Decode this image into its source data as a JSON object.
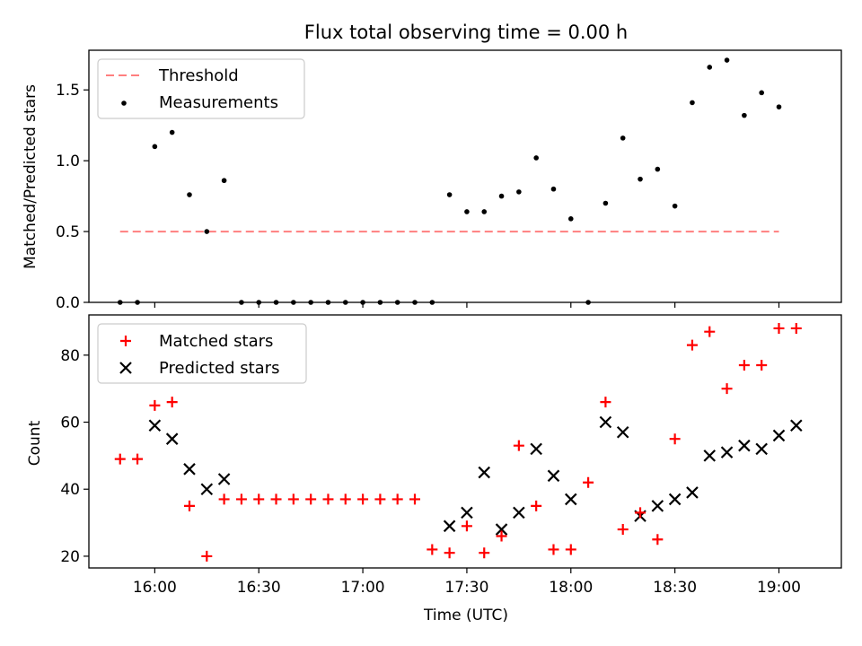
{
  "chart_data": [
    {
      "type": "scatter",
      "title": "Flux total observing time = 0.00 h",
      "ylabel": "Matched/Predicted stars",
      "xlabel": "",
      "xlim": [
        "15:41",
        "19:18"
      ],
      "ylim": [
        0,
        1.78
      ],
      "yticks": [
        "0.0",
        "0.5",
        "1.0",
        "1.5"
      ],
      "legend": {
        "placement": "top-left",
        "entries": [
          "Threshold",
          "Measurements"
        ]
      },
      "threshold": {
        "name": "Threshold",
        "value": 0.5,
        "x": [
          "15:50",
          "19:00"
        ],
        "color": "#ff7f7f"
      },
      "series": [
        {
          "name": "Measurements",
          "color": "#000000",
          "x": [
            "15:50",
            "15:55",
            "16:00",
            "16:05",
            "16:10",
            "16:15",
            "16:20",
            "16:25",
            "16:30",
            "16:35",
            "16:40",
            "16:45",
            "16:50",
            "16:55",
            "17:00",
            "17:05",
            "17:10",
            "17:15",
            "17:20",
            "17:25",
            "17:30",
            "17:35",
            "17:40",
            "17:45",
            "17:50",
            "17:55",
            "18:00",
            "18:05",
            "18:10",
            "18:15",
            "18:20",
            "18:25",
            "18:30",
            "18:35",
            "18:40",
            "18:45",
            "18:50",
            "18:55",
            "19:00"
          ],
          "values": [
            0.0,
            0.0,
            1.1,
            1.2,
            0.76,
            0.5,
            0.86,
            0.0,
            0.0,
            0.0,
            0.0,
            0.0,
            0.0,
            0.0,
            0.0,
            0.0,
            0.0,
            0.0,
            0.0,
            0.76,
            0.64,
            0.64,
            0.75,
            0.78,
            1.02,
            0.8,
            0.59,
            0.0,
            0.7,
            1.16,
            0.87,
            0.94,
            0.68,
            1.41,
            1.66,
            1.71,
            1.32,
            1.48,
            1.38
          ]
        }
      ]
    },
    {
      "type": "scatter",
      "title": "",
      "xlabel": "Time (UTC)",
      "ylabel": "Count",
      "xlim": [
        "15:41",
        "19:18"
      ],
      "ylim": [
        16.5,
        92
      ],
      "xticks": [
        "16:00",
        "16:30",
        "17:00",
        "17:30",
        "18:00",
        "18:30",
        "19:00"
      ],
      "yticks": [
        "20",
        "40",
        "60",
        "80"
      ],
      "legend": {
        "placement": "top-left",
        "entries": [
          "Matched stars",
          "Predicted stars"
        ]
      },
      "series": [
        {
          "name": "Matched stars",
          "marker": "plus",
          "color": "#ff0000",
          "x": [
            "15:50",
            "15:55",
            "16:00",
            "16:05",
            "16:10",
            "16:15",
            "16:20",
            "16:25",
            "16:30",
            "16:35",
            "16:40",
            "16:45",
            "16:50",
            "16:55",
            "17:00",
            "17:05",
            "17:10",
            "17:15",
            "17:20",
            "17:25",
            "17:30",
            "17:35",
            "17:40",
            "17:45",
            "17:50",
            "17:55",
            "18:00",
            "18:05",
            "18:10",
            "18:15",
            "18:20",
            "18:25",
            "18:30",
            "18:35",
            "18:40",
            "18:45",
            "18:50",
            "18:55",
            "19:00",
            "19:05"
          ],
          "values": [
            49,
            49,
            65,
            66,
            35,
            20,
            37,
            37,
            37,
            37,
            37,
            37,
            37,
            37,
            37,
            37,
            37,
            37,
            22,
            21,
            29,
            21,
            26,
            53,
            35,
            22,
            22,
            42,
            66,
            28,
            33,
            25,
            55,
            83,
            87,
            70,
            77,
            77,
            88,
            88
          ]
        },
        {
          "name": "Predicted stars",
          "marker": "x",
          "color": "#000000",
          "x": [
            "16:00",
            "16:05",
            "16:10",
            "16:15",
            "16:20",
            "17:25",
            "17:30",
            "17:35",
            "17:40",
            "17:45",
            "17:50",
            "17:55",
            "18:00",
            "18:10",
            "18:15",
            "18:20",
            "18:25",
            "18:30",
            "18:35",
            "18:40",
            "18:45",
            "18:50",
            "18:55",
            "19:00",
            "19:05"
          ],
          "values": [
            59,
            55,
            46,
            40,
            43,
            29,
            33,
            45,
            28,
            33,
            52,
            44,
            37,
            60,
            57,
            32,
            35,
            37,
            39,
            50,
            51,
            53,
            52,
            56,
            59
          ]
        }
      ]
    }
  ]
}
